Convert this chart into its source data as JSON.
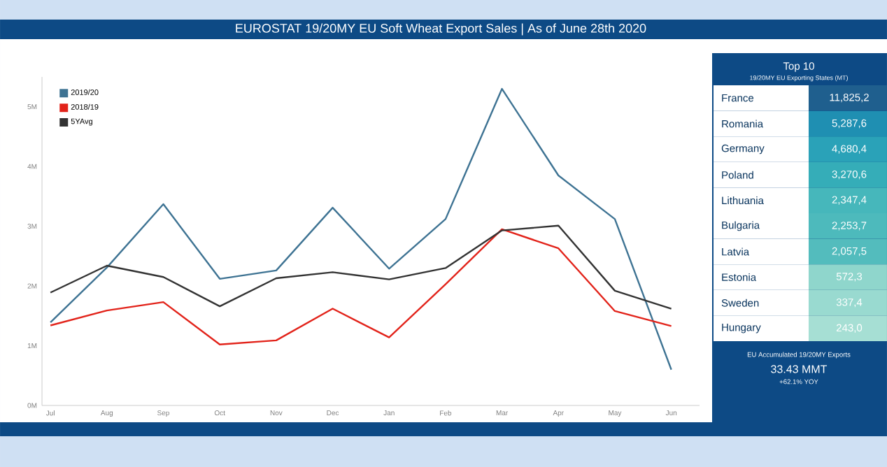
{
  "chart_data": [
    {
      "type": "line",
      "title": "EUROSTAT 19/20MY EU Soft Wheat Export Sales | As of June 28th 2020",
      "categories": [
        "Jul",
        "Aug",
        "Sep",
        "Oct",
        "Nov",
        "Dec",
        "Jan",
        "Feb",
        "Mar",
        "Apr",
        "May",
        "Jun"
      ],
      "series": [
        {
          "name": "2019/20",
          "color": "#3e7393",
          "values": [
            1.39,
            2.31,
            3.37,
            2.12,
            2.26,
            3.31,
            2.29,
            3.12,
            5.3,
            3.85,
            3.12,
            0.6
          ]
        },
        {
          "name": "2018/19",
          "color": "#e2231a",
          "values": [
            1.34,
            1.59,
            1.73,
            1.02,
            1.09,
            1.62,
            1.14,
            2.03,
            2.95,
            2.63,
            1.58,
            1.33
          ]
        },
        {
          "name": "5YAvg",
          "color": "#333333",
          "values": [
            1.89,
            2.34,
            2.15,
            1.66,
            2.13,
            2.23,
            2.11,
            2.3,
            2.93,
            3.01,
            1.92,
            1.62
          ]
        }
      ],
      "ylim": [
        0,
        5.5
      ],
      "yticks": [
        {
          "value": 0,
          "label": "0M"
        },
        {
          "value": 1,
          "label": "1M"
        },
        {
          "value": 2,
          "label": "2M"
        },
        {
          "value": 3,
          "label": "3M"
        },
        {
          "value": 4,
          "label": "4M"
        },
        {
          "value": 5,
          "label": "5M"
        }
      ],
      "grid": false,
      "legend": "top left",
      "marker": "none",
      "line_style": "solid"
    },
    {
      "type": "other",
      "title": "Top 10",
      "subtitle": "19/20MY EU Exporting States (MT)",
      "categories": [
        "France",
        "Romania",
        "Germany",
        "Poland",
        "Lithuania",
        "Bulgaria",
        "Latvia",
        "Estonia",
        "Sweden",
        "Hungary"
      ],
      "value_labels": [
        "11,825,2",
        "5,287,6",
        "4,680,4",
        "3,270,6",
        "2,347,4",
        "2,253,7",
        "2,057,5",
        "572,3",
        "337,4",
        "243,0"
      ],
      "annotations": [
        "EU Accumulated 19/20MY Exports",
        "33.43 MMT",
        "+62.1% YOY"
      ]
    }
  ]
}
